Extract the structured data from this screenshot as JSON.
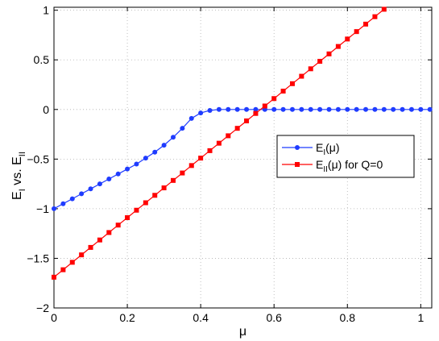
{
  "chart_data": {
    "type": "line",
    "title": "",
    "xlabel": "μ",
    "ylabel": {
      "main": "E",
      "sub1": "I",
      "mid": " vs. ",
      "main2": "E",
      "sub2": "II"
    },
    "xlim": [
      0,
      1.03
    ],
    "ylim": [
      -2,
      1.03
    ],
    "grid": true,
    "grid_style": "dotted",
    "legend_placement": "center-right",
    "x_ticks": [
      0,
      0.2,
      0.4,
      0.6,
      0.8,
      1
    ],
    "x_tick_labels": [
      "0",
      "0.2",
      "0.4",
      "0.6",
      "0.8",
      "1"
    ],
    "y_ticks": [
      -2,
      -1.5,
      -1,
      -0.5,
      0,
      0.5,
      1
    ],
    "y_tick_labels": [
      "−2",
      "−1.5",
      "−1",
      "−0.5",
      "0",
      "0.5",
      "1"
    ],
    "series": [
      {
        "name": {
          "main": "E",
          "sub": "I",
          "suffix": "(μ)"
        },
        "color": "#1f3cff",
        "marker": "circle",
        "x": [
          0,
          0.025,
          0.05,
          0.075,
          0.1,
          0.125,
          0.15,
          0.175,
          0.2,
          0.225,
          0.25,
          0.275,
          0.3,
          0.325,
          0.35,
          0.375,
          0.4,
          0.425,
          0.45,
          0.475,
          0.5,
          0.525,
          0.55,
          0.575,
          0.6,
          0.625,
          0.65,
          0.675,
          0.7,
          0.725,
          0.75,
          0.775,
          0.8,
          0.825,
          0.85,
          0.875,
          0.9,
          0.925,
          0.95,
          0.975,
          1.0,
          1.025
        ],
        "y": [
          -1.0,
          -0.95,
          -0.9,
          -0.85,
          -0.8,
          -0.75,
          -0.7,
          -0.65,
          -0.6,
          -0.55,
          -0.49,
          -0.43,
          -0.36,
          -0.28,
          -0.19,
          -0.09,
          -0.035,
          -0.01,
          0,
          0,
          0,
          0,
          0,
          0,
          0,
          0,
          0,
          0,
          0,
          0,
          0,
          0,
          0,
          0,
          0,
          0,
          0,
          0,
          0,
          0,
          0,
          0
        ]
      },
      {
        "name": {
          "main": "E",
          "sub": "II",
          "suffix": "(μ) for Q=0"
        },
        "color": "#ff0000",
        "marker": "square",
        "x": [
          0,
          0.025,
          0.05,
          0.075,
          0.1,
          0.125,
          0.15,
          0.175,
          0.2,
          0.225,
          0.25,
          0.275,
          0.3,
          0.325,
          0.35,
          0.375,
          0.4,
          0.425,
          0.45,
          0.475,
          0.5,
          0.525,
          0.55,
          0.575,
          0.6,
          0.625,
          0.65,
          0.675,
          0.7,
          0.725,
          0.75,
          0.775,
          0.8,
          0.825,
          0.85,
          0.875,
          0.9
        ],
        "y": [
          -1.69,
          -1.615,
          -1.54,
          -1.465,
          -1.39,
          -1.315,
          -1.24,
          -1.165,
          -1.09,
          -1.015,
          -0.94,
          -0.865,
          -0.79,
          -0.715,
          -0.64,
          -0.565,
          -0.49,
          -0.415,
          -0.34,
          -0.265,
          -0.19,
          -0.115,
          -0.04,
          0.035,
          0.11,
          0.185,
          0.26,
          0.335,
          0.41,
          0.485,
          0.56,
          0.635,
          0.71,
          0.785,
          0.86,
          0.935,
          1.01
        ]
      }
    ]
  }
}
